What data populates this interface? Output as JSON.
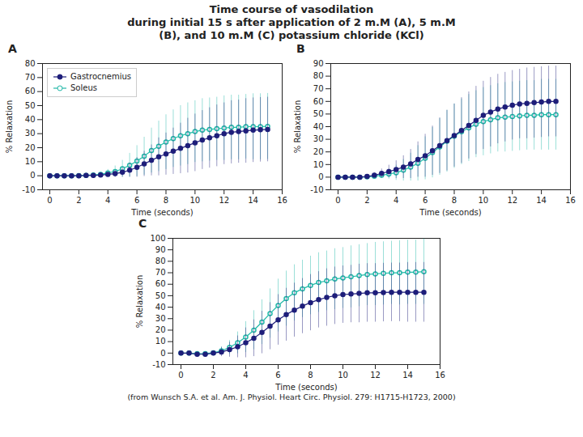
{
  "title": [
    "Time course of vasodilation",
    "during initial 15 s after application of 2 m.M (A), 5 m.M",
    "(B), and 10 m.M (C) potassium chloride (KCl)"
  ],
  "caption": "(from Wunsch S.A. et al. Am. J. Physiol. Heart Circ. Physiol. 279: H1715-H1723, 2000)",
  "chart_data": [
    {
      "type": "line",
      "title": "A",
      "xlabel": "Time (seconds)",
      "ylabel": "% Relaxation",
      "x": [
        0,
        0.5,
        1,
        1.5,
        2,
        2.5,
        3,
        3.5,
        4,
        4.5,
        5,
        5.5,
        6,
        6.5,
        7,
        7.5,
        8,
        8.5,
        9,
        9.5,
        10,
        10.5,
        11,
        11.5,
        12,
        12.5,
        13,
        13.5,
        14,
        14.5,
        15
      ],
      "xlim": [
        -0.5,
        16
      ],
      "xticks": [
        0,
        2,
        4,
        6,
        8,
        10,
        12,
        14,
        16
      ],
      "ylim": [
        -10,
        80
      ],
      "yticks": [
        -10,
        0,
        10,
        20,
        30,
        40,
        50,
        60,
        70,
        80
      ],
      "grid": false,
      "legend": "upper left",
      "series": [
        {
          "name": "Gastrocnemius",
          "color": "#1E1E7A",
          "marker": "circle",
          "values": [
            0,
            0,
            0,
            0,
            0,
            0.2,
            0.3,
            0.5,
            1.0,
            1.5,
            2.5,
            4.0,
            6.0,
            8.5,
            11.0,
            13.5,
            15.5,
            17.5,
            19.5,
            21.5,
            23.5,
            25.5,
            27.0,
            28.5,
            30.0,
            31.0,
            31.5,
            32.0,
            32.5,
            32.8,
            33.0
          ],
          "errors": [
            0,
            0,
            0,
            0,
            0.1,
            0.3,
            0.5,
            0.8,
            1.5,
            2.5,
            3.5,
            5.0,
            7.0,
            9.0,
            11.0,
            13.5,
            15.0,
            16.5,
            18.0,
            19.5,
            20.5,
            21.0,
            21.5,
            22.0,
            22.0,
            22.5,
            22.5,
            23.0,
            23.0,
            23.0,
            23.0
          ]
        },
        {
          "name": "Soleus",
          "color": "#22B8A8",
          "marker": "open_circle",
          "values": [
            0,
            0,
            0,
            0,
            0.1,
            0.3,
            0.6,
            1.0,
            2.0,
            3.0,
            5.0,
            7.5,
            10.5,
            14.0,
            18.0,
            21.0,
            24.0,
            26.5,
            28.5,
            30.0,
            31.5,
            32.5,
            33.0,
            33.5,
            34.0,
            34.5,
            34.5,
            35.0,
            35.0,
            35.0,
            35.2
          ],
          "errors": [
            0,
            0,
            0,
            0,
            0.3,
            0.5,
            0.8,
            1.5,
            2.5,
            4.0,
            6.0,
            8.5,
            11.0,
            13.5,
            16.0,
            18.0,
            19.5,
            20.5,
            21.5,
            22.0,
            22.0,
            22.5,
            22.5,
            22.5,
            23.0,
            23.0,
            23.0,
            23.0,
            23.5,
            23.5,
            23.5
          ]
        }
      ]
    },
    {
      "type": "line",
      "title": "B",
      "xlabel": "Time (seconds)",
      "ylabel": "% Relaxation",
      "x": [
        0,
        0.5,
        1,
        1.5,
        2,
        2.5,
        3,
        3.5,
        4,
        4.5,
        5,
        5.5,
        6,
        6.5,
        7,
        7.5,
        8,
        8.5,
        9,
        9.5,
        10,
        10.5,
        11,
        11.5,
        12,
        12.5,
        13,
        13.5,
        14,
        14.5,
        15
      ],
      "xlim": [
        -0.5,
        16
      ],
      "xticks": [
        0,
        2,
        4,
        6,
        8,
        10,
        12,
        14,
        16
      ],
      "ylim": [
        -10,
        90
      ],
      "yticks": [
        -10,
        0,
        10,
        20,
        30,
        40,
        50,
        60,
        70,
        80,
        90
      ],
      "grid": false,
      "series": [
        {
          "name": "Gastrocnemius",
          "color": "#1E1E7A",
          "marker": "circle",
          "values": [
            0,
            0,
            0,
            0,
            0.5,
            1.5,
            3.0,
            4.5,
            6.0,
            8.0,
            10.5,
            14.0,
            17.0,
            21.0,
            25.0,
            29.0,
            33.0,
            37.0,
            41.0,
            45.0,
            49.0,
            51.5,
            54.0,
            55.5,
            57.0,
            58.0,
            58.5,
            59.0,
            59.5,
            60.0,
            60.0
          ],
          "errors": [
            0,
            0,
            0,
            0.5,
            1.0,
            2.0,
            3.5,
            5.0,
            7.0,
            9.0,
            11.5,
            14.0,
            17.0,
            19.5,
            22.0,
            24.0,
            25.0,
            26.0,
            26.5,
            27.0,
            27.0,
            27.5,
            27.5,
            27.5,
            27.5,
            27.5,
            28.0,
            28.0,
            28.0,
            28.0,
            28.0
          ]
        },
        {
          "name": "Soleus",
          "color": "#22B8A8",
          "marker": "open_circle",
          "values": [
            0,
            0,
            0,
            0,
            0.2,
            0.8,
            1.5,
            2.5,
            3.5,
            5.5,
            8.0,
            11.0,
            15.0,
            19.5,
            24.0,
            28.5,
            32.5,
            36.0,
            39.0,
            42.0,
            44.0,
            45.5,
            47.0,
            47.5,
            48.0,
            48.5,
            49.0,
            49.0,
            49.5,
            49.5,
            49.5
          ],
          "errors": [
            0,
            0,
            0,
            0.3,
            0.8,
            1.5,
            2.5,
            4.0,
            6.0,
            8.5,
            11.0,
            14.0,
            17.0,
            20.0,
            22.5,
            24.5,
            25.5,
            26.0,
            26.5,
            26.5,
            27.0,
            27.0,
            27.0,
            27.5,
            27.5,
            27.5,
            27.5,
            27.5,
            28.0,
            28.0,
            28.0
          ]
        }
      ]
    },
    {
      "type": "line",
      "title": "C",
      "xlabel": "Time (seconds)",
      "ylabel": "% Relaxation",
      "x": [
        0,
        0.5,
        1,
        1.5,
        2,
        2.5,
        3,
        3.5,
        4,
        4.5,
        5,
        5.5,
        6,
        6.5,
        7,
        7.5,
        8,
        8.5,
        9,
        9.5,
        10,
        10.5,
        11,
        11.5,
        12,
        12.5,
        13,
        13.5,
        14,
        14.5,
        15
      ],
      "xlim": [
        -0.5,
        16
      ],
      "xticks": [
        0,
        2,
        4,
        6,
        8,
        10,
        12,
        14,
        16
      ],
      "ylim": [
        -10,
        100
      ],
      "yticks": [
        -10,
        0,
        10,
        20,
        30,
        40,
        50,
        60,
        70,
        80,
        90,
        100
      ],
      "grid": false,
      "series": [
        {
          "name": "Gastrocnemius",
          "color": "#1E1E7A",
          "marker": "circle",
          "values": [
            0,
            0,
            -1,
            -1,
            0,
            1.0,
            3.0,
            5.5,
            9.0,
            13.0,
            18.0,
            23.5,
            29.0,
            33.5,
            37.5,
            41.0,
            44.0,
            46.5,
            48.5,
            50.0,
            51.0,
            51.5,
            52.0,
            52.5,
            52.5,
            52.8,
            53.0,
            53.0,
            53.0,
            53.0,
            53.0
          ],
          "errors": [
            0,
            0,
            0.5,
            1.0,
            2.0,
            4.0,
            6.5,
            9.5,
            13.0,
            16.0,
            18.5,
            20.5,
            22.0,
            23.0,
            23.5,
            24.0,
            24.5,
            24.5,
            25.0,
            25.0,
            25.0,
            25.0,
            25.5,
            25.5,
            25.5,
            25.5,
            25.5,
            25.5,
            26.0,
            26.0,
            26.0
          ]
        },
        {
          "name": "Soleus",
          "color": "#22B8A8",
          "marker": "open_circle",
          "values": [
            0,
            0,
            -0.5,
            -0.5,
            0.3,
            2.0,
            5.0,
            9.0,
            14.0,
            20.0,
            27.0,
            34.5,
            41.5,
            47.5,
            52.5,
            56.0,
            59.0,
            61.5,
            63.0,
            64.5,
            65.5,
            66.5,
            67.5,
            68.5,
            69.0,
            69.5,
            70.0,
            70.0,
            70.5,
            70.5,
            71.0
          ],
          "errors": [
            0,
            0,
            0.5,
            1.0,
            1.5,
            3.5,
            6.0,
            9.5,
            13.5,
            17.0,
            19.5,
            21.5,
            23.0,
            24.0,
            24.5,
            25.0,
            25.5,
            26.0,
            26.0,
            26.5,
            26.5,
            27.0,
            27.0,
            27.0,
            27.5,
            27.5,
            27.5,
            28.0,
            28.0,
            28.0,
            28.5
          ]
        }
      ]
    }
  ]
}
